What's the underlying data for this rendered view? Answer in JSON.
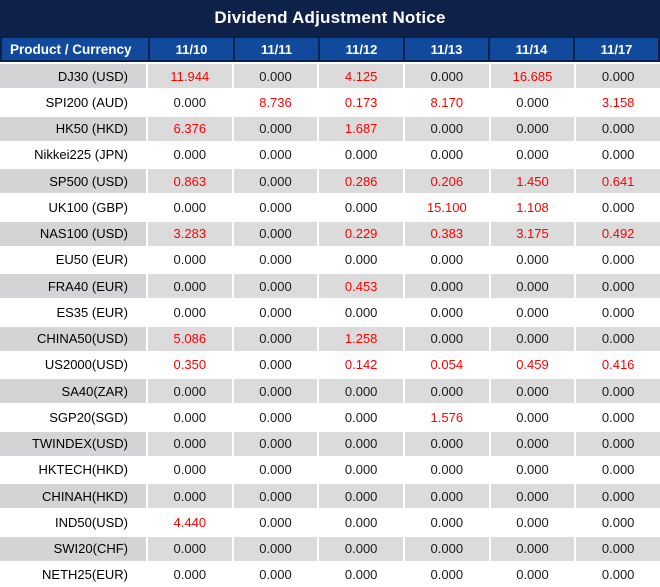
{
  "title": "Dividend Adjustment Notice",
  "table": {
    "product_header": "Product / Currency",
    "date_headers": [
      "11/10",
      "11/11",
      "11/12",
      "11/13",
      "11/14",
      "11/17"
    ],
    "rows": [
      {
        "product": "DJ30 (USD)",
        "values": [
          "11.944",
          "0.000",
          "4.125",
          "0.000",
          "16.685",
          "0.000"
        ]
      },
      {
        "product": "SPI200 (AUD)",
        "values": [
          "0.000",
          "8.736",
          "0.173",
          "8.170",
          "0.000",
          "3.158"
        ]
      },
      {
        "product": "HK50 (HKD)",
        "values": [
          "6.376",
          "0.000",
          "1.687",
          "0.000",
          "0.000",
          "0.000"
        ]
      },
      {
        "product": "Nikkei225 (JPN)",
        "values": [
          "0.000",
          "0.000",
          "0.000",
          "0.000",
          "0.000",
          "0.000"
        ]
      },
      {
        "product": "SP500 (USD)",
        "values": [
          "0.863",
          "0.000",
          "0.286",
          "0.206",
          "1.450",
          "0.641"
        ]
      },
      {
        "product": "UK100 (GBP)",
        "values": [
          "0.000",
          "0.000",
          "0.000",
          "15.100",
          "1.108",
          "0.000"
        ]
      },
      {
        "product": "NAS100 (USD)",
        "values": [
          "3.283",
          "0.000",
          "0.229",
          "0.383",
          "3.175",
          "0.492"
        ]
      },
      {
        "product": "EU50 (EUR)",
        "values": [
          "0.000",
          "0.000",
          "0.000",
          "0.000",
          "0.000",
          "0.000"
        ]
      },
      {
        "product": "FRA40 (EUR)",
        "values": [
          "0.000",
          "0.000",
          "0.453",
          "0.000",
          "0.000",
          "0.000"
        ]
      },
      {
        "product": "ES35 (EUR)",
        "values": [
          "0.000",
          "0.000",
          "0.000",
          "0.000",
          "0.000",
          "0.000"
        ]
      },
      {
        "product": "CHINA50(USD)",
        "values": [
          "5.086",
          "0.000",
          "1.258",
          "0.000",
          "0.000",
          "0.000"
        ]
      },
      {
        "product": "US2000(USD)",
        "values": [
          "0.350",
          "0.000",
          "0.142",
          "0.054",
          "0.459",
          "0.416"
        ]
      },
      {
        "product": "SA40(ZAR)",
        "values": [
          "0.000",
          "0.000",
          "0.000",
          "0.000",
          "0.000",
          "0.000"
        ]
      },
      {
        "product": "SGP20(SGD)",
        "values": [
          "0.000",
          "0.000",
          "0.000",
          "1.576",
          "0.000",
          "0.000"
        ]
      },
      {
        "product": "TWINDEX(USD)",
        "values": [
          "0.000",
          "0.000",
          "0.000",
          "0.000",
          "0.000",
          "0.000"
        ]
      },
      {
        "product": "HKTECH(HKD)",
        "values": [
          "0.000",
          "0.000",
          "0.000",
          "0.000",
          "0.000",
          "0.000"
        ]
      },
      {
        "product": "CHINAH(HKD)",
        "values": [
          "0.000",
          "0.000",
          "0.000",
          "0.000",
          "0.000",
          "0.000"
        ]
      },
      {
        "product": "IND50(USD)",
        "values": [
          "4.440",
          "0.000",
          "0.000",
          "0.000",
          "0.000",
          "0.000"
        ]
      },
      {
        "product": "SWI20(CHF)",
        "values": [
          "0.000",
          "0.000",
          "0.000",
          "0.000",
          "0.000",
          "0.000"
        ]
      },
      {
        "product": "NETH25(EUR)",
        "values": [
          "0.000",
          "0.000",
          "0.000",
          "0.000",
          "0.000",
          "0.000"
        ]
      }
    ],
    "zero_value": "0.000"
  },
  "colors": {
    "title_bg": "#0e2148",
    "header_bg": "#114a9c",
    "row_gray_label": "#d2d4d6",
    "row_gray_value": "#dbdbdb",
    "value_zero": "#1a1a1a",
    "value_nonzero": "#ff0000"
  }
}
